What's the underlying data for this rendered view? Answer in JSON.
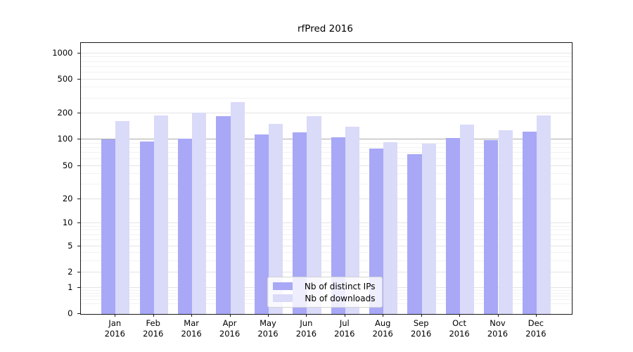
{
  "title": "rfPred 2016",
  "chart_data": {
    "type": "bar",
    "title": "rfPred 2016",
    "months": [
      "Jan",
      "Feb",
      "Mar",
      "Apr",
      "May",
      "Jun",
      "Jul",
      "Aug",
      "Sep",
      "Oct",
      "Nov",
      "Dec"
    ],
    "year": "2016",
    "categories": [
      "Jan 2016",
      "Feb 2016",
      "Mar 2016",
      "Apr 2016",
      "May 2016",
      "Jun 2016",
      "Jul 2016",
      "Aug 2016",
      "Sep 2016",
      "Oct 2016",
      "Nov 2016",
      "Dec 2016"
    ],
    "series": [
      {
        "name": "Nb of distinct IPs",
        "color": "#a8a8f7",
        "values": [
          100,
          95,
          101,
          186,
          114,
          120,
          105,
          79,
          68,
          104,
          97,
          122
        ]
      },
      {
        "name": "Nb of downloads",
        "color": "#dadaf9",
        "values": [
          165,
          190,
          205,
          270,
          150,
          186,
          140,
          93,
          89,
          148,
          127,
          190
        ]
      }
    ],
    "y_axis": {
      "scale": "symlog",
      "ticks": [
        0,
        1,
        2,
        5,
        10,
        20,
        50,
        100,
        200,
        500,
        1000
      ],
      "ylim": [
        0,
        1400
      ]
    },
    "legend": {
      "position": "lower center"
    },
    "grid": {
      "horizontal_major": true,
      "horizontal_minor": true
    }
  },
  "style_colors": {
    "grid_major": "#e4e4e4",
    "grid_minor": "#f2f2f2",
    "grid_hundred": "#ababab",
    "axis": "#1a1a1a"
  }
}
